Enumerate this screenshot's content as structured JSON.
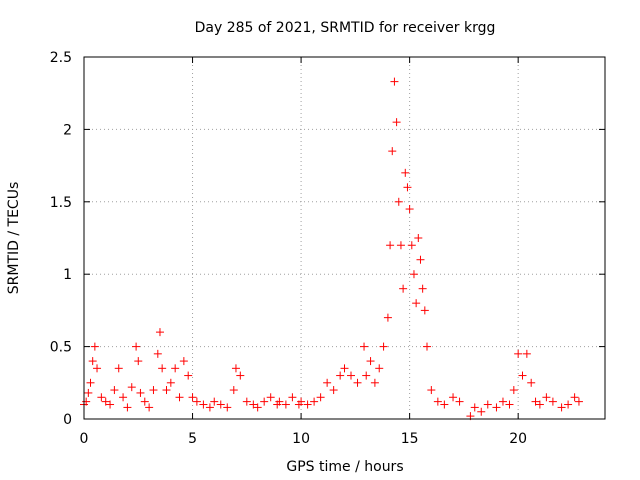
{
  "chart_data": {
    "type": "scatter",
    "title": "Day 285 of 2021, SRMTID for receiver krgg",
    "xlabel": "GPS time / hours",
    "ylabel": "SRMTID / TECUs",
    "xlim": [
      0,
      24
    ],
    "ylim": [
      0,
      2.5
    ],
    "xticks": [
      0,
      5,
      10,
      15,
      20
    ],
    "xtick_labels": [
      "0",
      "5",
      "10",
      "15",
      "20"
    ],
    "yticks": [
      0,
      0.5,
      1,
      1.5,
      2,
      2.5
    ],
    "ytick_labels": [
      "0",
      "0.5",
      "1",
      "1.5",
      "2",
      "2.5"
    ],
    "grid": true,
    "marker": "+",
    "marker_color": "#ff0000",
    "series": [
      {
        "name": "krgg",
        "x": [
          0.0,
          0.1,
          0.2,
          0.3,
          0.4,
          0.5,
          0.6,
          0.8,
          1.0,
          1.2,
          1.4,
          1.6,
          1.8,
          2.0,
          2.2,
          2.4,
          2.5,
          2.6,
          2.8,
          3.0,
          3.2,
          3.4,
          3.5,
          3.6,
          3.8,
          4.0,
          4.2,
          4.4,
          4.6,
          4.8,
          5.0,
          5.2,
          5.5,
          5.8,
          6.0,
          6.3,
          6.6,
          6.9,
          7.0,
          7.2,
          7.5,
          7.8,
          8.0,
          8.3,
          8.6,
          8.9,
          9.0,
          9.3,
          9.6,
          9.9,
          10.0,
          10.3,
          10.6,
          10.9,
          11.2,
          11.5,
          11.8,
          12.0,
          12.3,
          12.6,
          12.9,
          13.0,
          13.2,
          13.4,
          13.6,
          13.8,
          14.0,
          14.1,
          14.2,
          14.3,
          14.4,
          14.5,
          14.6,
          14.7,
          14.8,
          14.9,
          15.0,
          15.1,
          15.2,
          15.3,
          15.4,
          15.5,
          15.6,
          15.7,
          15.8,
          16.0,
          16.3,
          16.6,
          17.0,
          17.3,
          17.8,
          18.0,
          18.3,
          18.6,
          19.0,
          19.3,
          19.6,
          19.8,
          20.0,
          20.2,
          20.4,
          20.6,
          20.8,
          21.0,
          21.3,
          21.6,
          22.0,
          22.3,
          22.6,
          22.8
        ],
        "y": [
          0.1,
          0.12,
          0.18,
          0.25,
          0.4,
          0.5,
          0.35,
          0.15,
          0.12,
          0.1,
          0.2,
          0.35,
          0.15,
          0.08,
          0.22,
          0.5,
          0.4,
          0.18,
          0.12,
          0.08,
          0.2,
          0.45,
          0.6,
          0.35,
          0.2,
          0.25,
          0.35,
          0.15,
          0.4,
          0.3,
          0.15,
          0.12,
          0.1,
          0.08,
          0.12,
          0.1,
          0.08,
          0.2,
          0.35,
          0.3,
          0.12,
          0.1,
          0.08,
          0.12,
          0.15,
          0.1,
          0.12,
          0.1,
          0.15,
          0.1,
          0.12,
          0.1,
          0.12,
          0.15,
          0.25,
          0.2,
          0.3,
          0.35,
          0.3,
          0.25,
          0.5,
          0.3,
          0.4,
          0.25,
          0.35,
          0.5,
          0.7,
          1.2,
          1.85,
          2.33,
          2.05,
          1.5,
          1.2,
          0.9,
          1.7,
          1.6,
          1.45,
          1.2,
          1.0,
          0.8,
          1.25,
          1.1,
          0.9,
          0.75,
          0.5,
          0.2,
          0.12,
          0.1,
          0.15,
          0.12,
          0.02,
          0.08,
          0.05,
          0.1,
          0.08,
          0.12,
          0.1,
          0.2,
          0.45,
          0.3,
          0.45,
          0.25,
          0.12,
          0.1,
          0.15,
          0.12,
          0.08,
          0.1,
          0.15,
          0.12
        ]
      }
    ]
  }
}
